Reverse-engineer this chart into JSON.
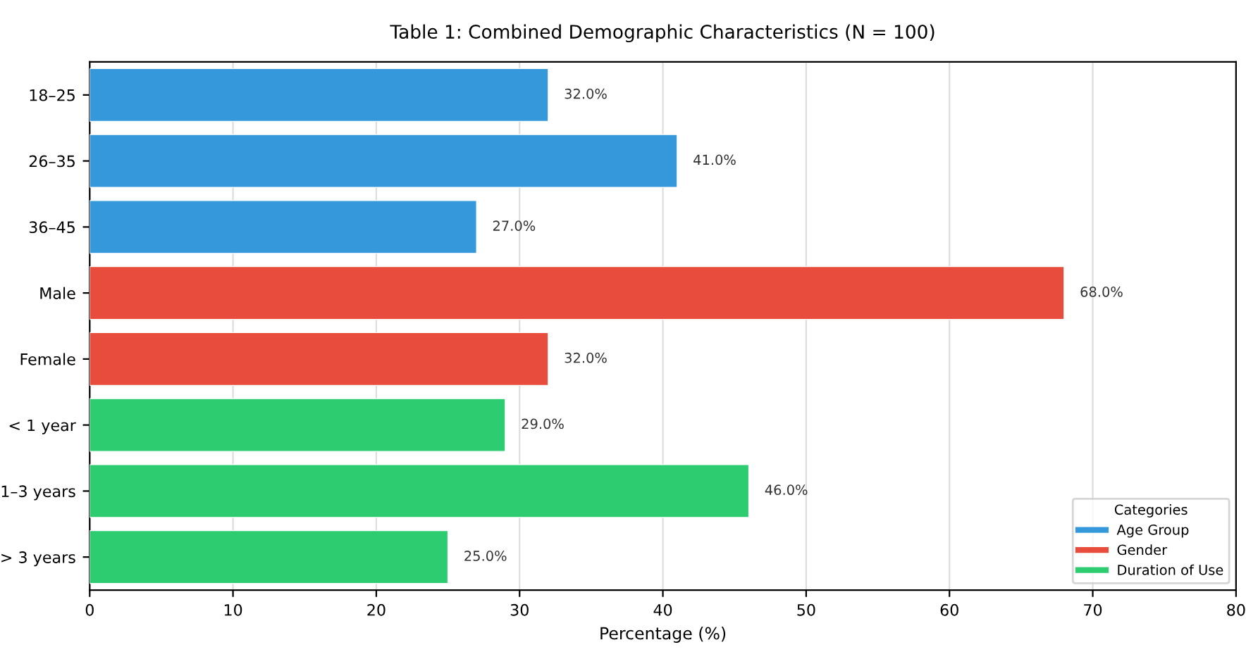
{
  "chart_data": {
    "type": "bar",
    "orientation": "horizontal",
    "title": "Table 1: Combined Demographic Characteristics (N = 100)",
    "xlabel": "Percentage (%)",
    "legend_title": "Categories",
    "categories": [
      "18–25",
      "26–35",
      "36–45",
      "Male",
      "Female",
      "< 1 year",
      "1–3 years",
      "> 3 years"
    ],
    "series": [
      {
        "name": "Age Group",
        "color": "#3498db",
        "values": [
          32,
          41,
          27,
          null,
          null,
          null,
          null,
          null
        ],
        "value_labels": [
          "32.0%",
          "41.0%",
          "27.0%",
          null,
          null,
          null,
          null,
          null
        ]
      },
      {
        "name": "Gender",
        "color": "#e74c3c",
        "values": [
          null,
          null,
          null,
          68,
          32,
          null,
          null,
          null
        ],
        "value_labels": [
          null,
          null,
          null,
          "68.0%",
          "32.0%",
          null,
          null,
          null
        ]
      },
      {
        "name": "Duration of Use",
        "color": "#2ecc71",
        "values": [
          null,
          null,
          null,
          null,
          null,
          29,
          46,
          25
        ],
        "value_labels": [
          null,
          null,
          null,
          null,
          null,
          "29.0%",
          "46.0%",
          "25.0%"
        ]
      }
    ],
    "xlim": [
      0,
      80
    ],
    "xticks": [
      0,
      10,
      20,
      30,
      40,
      50,
      60,
      70,
      80
    ],
    "grid": "x",
    "legend": "bottom right"
  }
}
